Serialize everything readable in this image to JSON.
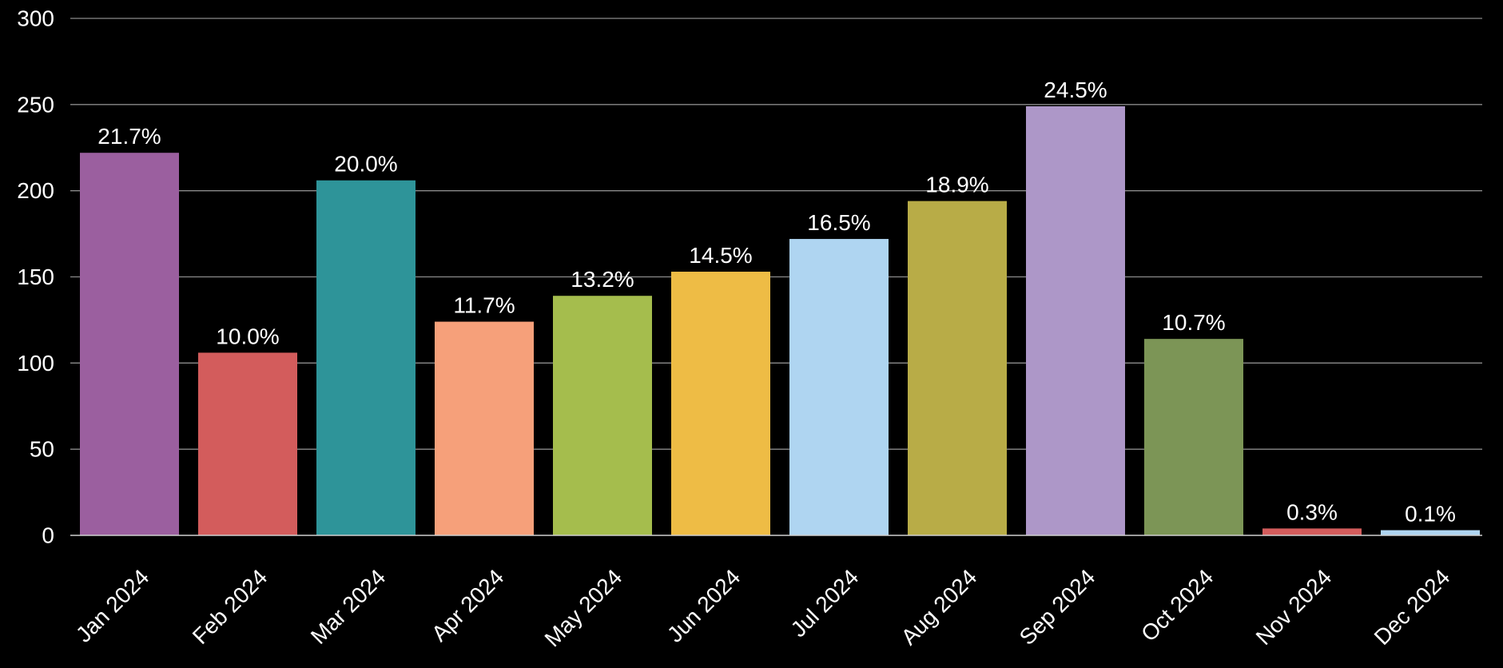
{
  "chart_data": {
    "type": "bar",
    "title": "",
    "xlabel": "",
    "ylabel": "",
    "ylim": [
      0,
      300
    ],
    "yticks": [
      "0",
      "50",
      "100",
      "150",
      "200",
      "250",
      "300"
    ],
    "grid": true,
    "legend": "none",
    "categories": [
      "Jan 2024",
      "Feb 2024",
      "Mar 2024",
      "Apr 2024",
      "May 2024",
      "Jun 2024",
      "Jul 2024",
      "Aug 2024",
      "Sep 2024",
      "Oct 2024",
      "Nov 2024",
      "Dec 2024"
    ],
    "values": [
      222,
      106,
      206,
      124,
      139,
      153,
      172,
      194,
      249,
      114,
      4,
      3
    ],
    "data_labels": [
      "21.7%",
      "10.0%",
      "20.0%",
      "11.7%",
      "13.2%",
      "14.5%",
      "16.5%",
      "18.9%",
      "24.5%",
      "10.7%",
      "0.3%",
      "0.1%"
    ],
    "colors": [
      "#9b5f9f",
      "#d35c5c",
      "#2e9499",
      "#f6a07a",
      "#a5bd4d",
      "#eebc45",
      "#afd5f1",
      "#b8ac47",
      "#ad97c8",
      "#7c9556",
      "#d35c5c",
      "#afd5f1"
    ],
    "background": "#000000"
  }
}
